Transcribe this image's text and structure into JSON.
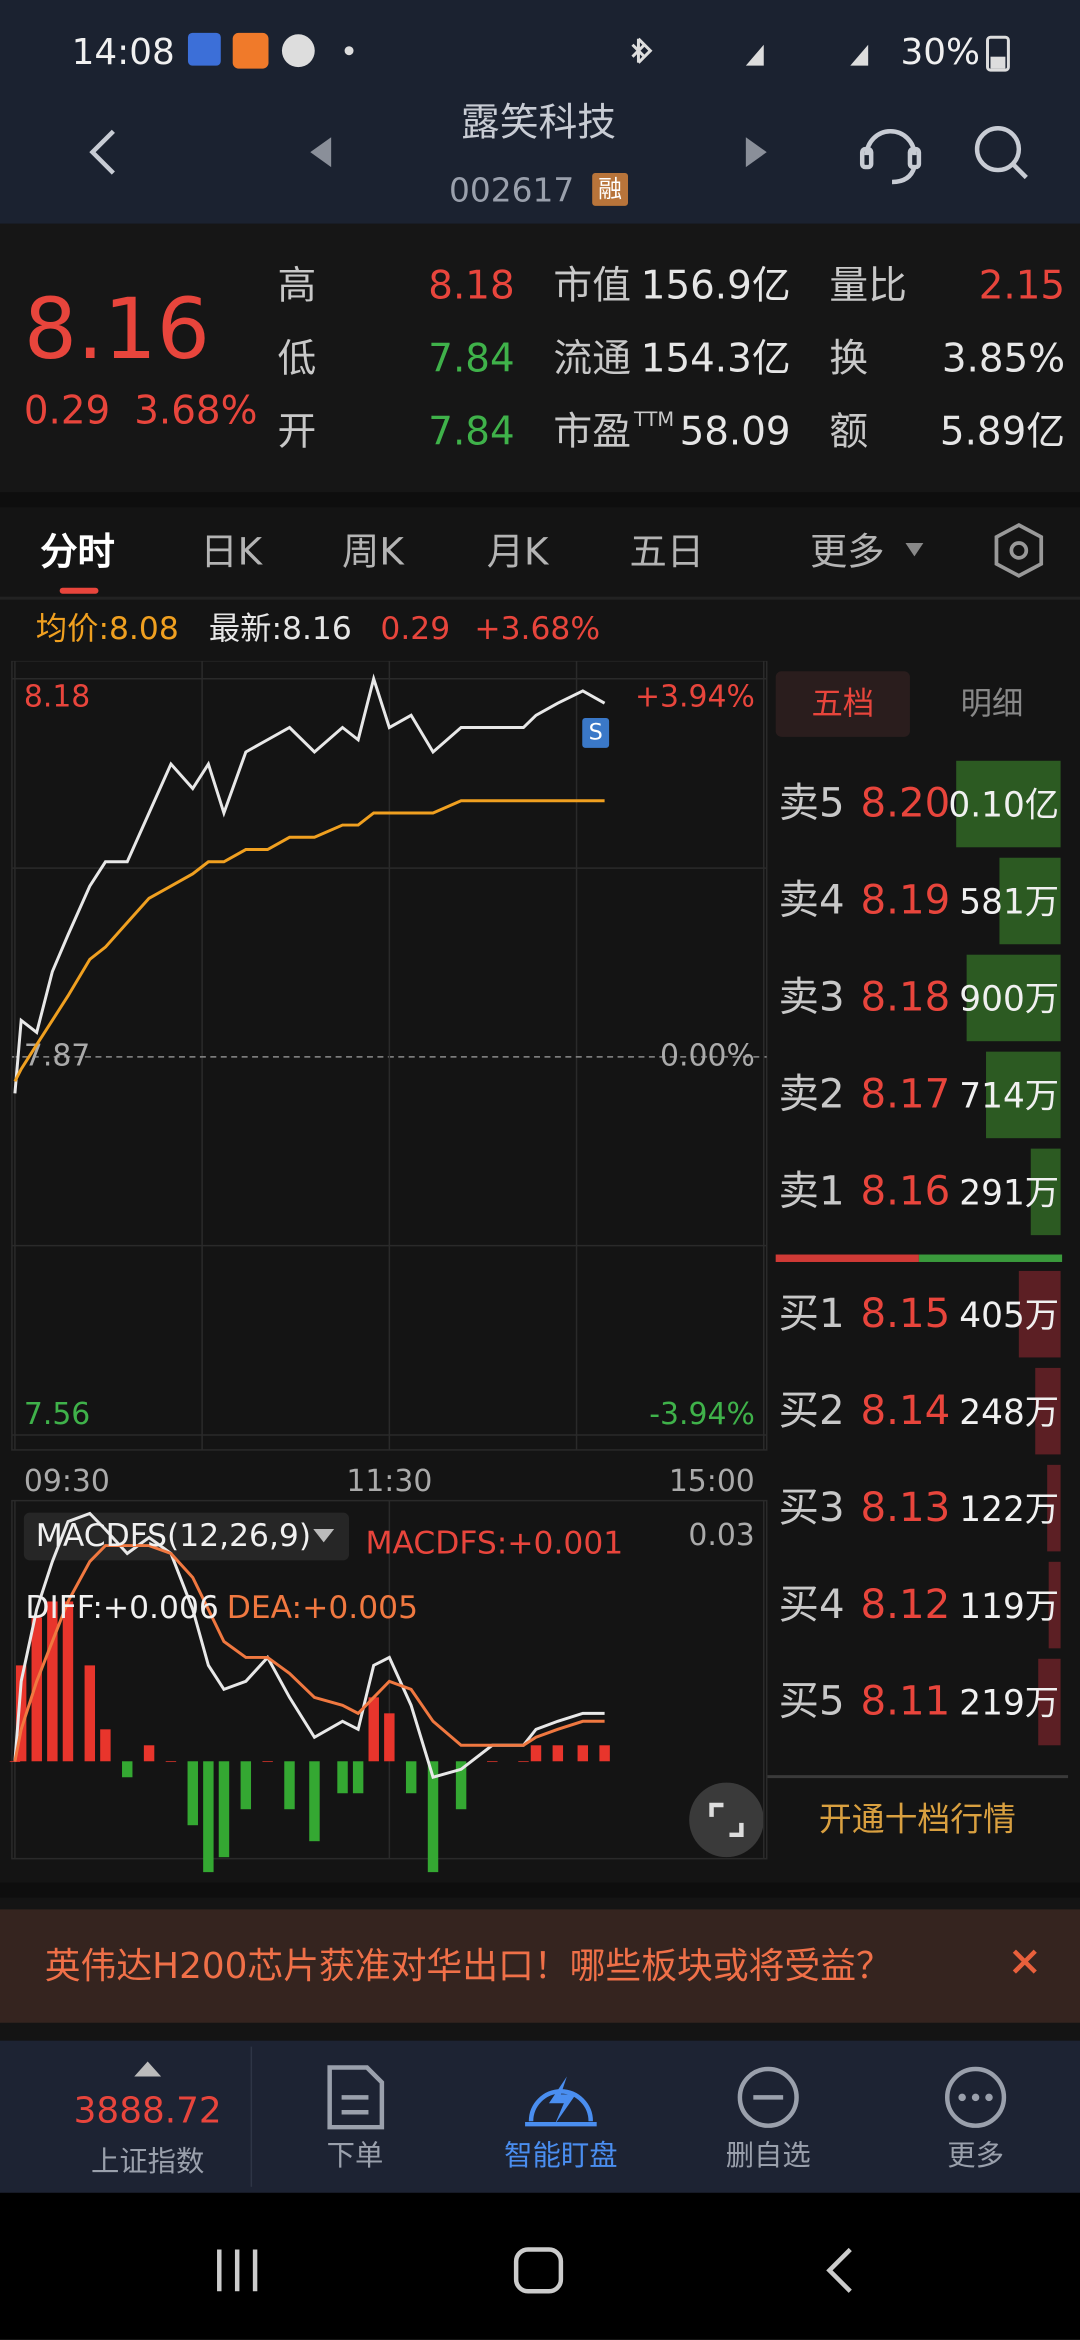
{
  "status_bar": {
    "time": "14:08",
    "battery": "30%"
  },
  "header": {
    "title": "露笑科技",
    "code": "002617",
    "badge": "融"
  },
  "quote": {
    "price": "8.16",
    "change": "0.29",
    "change_pct": "3.68%",
    "stats": [
      [
        {
          "label": "高",
          "value": "8.18",
          "tone": "up"
        },
        {
          "label": "低",
          "value": "7.84",
          "tone": "down"
        },
        {
          "label": "开",
          "value": "7.84",
          "tone": "down"
        }
      ],
      [
        {
          "label": "市值",
          "value": "156.9亿"
        },
        {
          "label": "流通",
          "value": "154.3亿"
        },
        {
          "label": "市盈",
          "sup": "TTM",
          "value": "58.09"
        }
      ],
      [
        {
          "label": "量比",
          "value": "2.15",
          "tone": "up"
        },
        {
          "label": "换",
          "value": "3.85%"
        },
        {
          "label": "额",
          "value": "5.89亿"
        }
      ]
    ]
  },
  "tabs": {
    "items": [
      "分时",
      "日K",
      "周K",
      "月K",
      "五日",
      "更多"
    ],
    "active": 0
  },
  "summary": {
    "avg": "均价:8.08",
    "latest": "最新:8.16",
    "change": "0.29",
    "change_pct": "+3.68%"
  },
  "chart_data": [
    {
      "type": "line",
      "x": [
        0,
        2,
        7,
        12,
        17,
        24,
        29,
        36,
        43,
        50,
        57,
        62,
        67,
        74,
        81,
        88,
        96,
        105,
        110,
        115,
        120,
        127,
        134,
        143,
        153,
        163,
        167,
        174,
        182,
        189
      ],
      "series": [
        {
          "color": "#e8e8e8",
          "values": [
            7.84,
            7.9,
            7.89,
            7.94,
            7.97,
            8.01,
            8.03,
            8.03,
            8.07,
            8.11,
            8.09,
            8.11,
            8.07,
            8.12,
            8.13,
            8.14,
            8.12,
            8.14,
            8.13,
            8.18,
            8.14,
            8.15,
            8.12,
            8.14,
            8.14,
            8.14,
            8.15,
            8.16,
            8.17,
            8.16
          ]
        },
        {
          "color": "#f0a020",
          "values": [
            7.85,
            7.86,
            7.88,
            7.9,
            7.92,
            7.95,
            7.96,
            7.98,
            8.0,
            8.01,
            8.02,
            8.03,
            8.03,
            8.04,
            8.04,
            8.05,
            8.05,
            8.06,
            8.06,
            8.07,
            8.07,
            8.07,
            8.07,
            8.08,
            8.08,
            8.08,
            8.08,
            8.08,
            8.08,
            8.08
          ]
        }
      ],
      "xlim": [
        0,
        240
      ],
      "xticks": [
        {
          "value": 0,
          "label": "09:30"
        },
        {
          "value": 120,
          "label": "11:30"
        },
        {
          "value": 240,
          "label": "15:00"
        }
      ],
      "ylim": [
        7.56,
        8.18
      ],
      "yticks": [
        8.18,
        7.87,
        7.56
      ],
      "y2lim": [
        -3.94,
        3.94
      ],
      "y2ticks": [
        {
          "value": 3.94,
          "label": "+3.94%"
        },
        {
          "value": 0,
          "label": "0.00%"
        },
        {
          "value": -3.94,
          "label": "-3.94%"
        }
      ],
      "annotations": [
        "S"
      ]
    },
    {
      "type": "macd",
      "title": "MACDFS(12,26,9)",
      "labels": [
        "MACDFS:+0.001",
        "DIFF:+0.006",
        "DEA:+0.005"
      ],
      "x": [
        0,
        2,
        7,
        12,
        17,
        24,
        29,
        36,
        43,
        50,
        57,
        62,
        67,
        74,
        81,
        88,
        96,
        105,
        110,
        115,
        120,
        127,
        134,
        143,
        153,
        163,
        167,
        174,
        182,
        189
      ],
      "series": [
        {
          "color": "#e8e8e8",
          "values": [
            0.0,
            0.01,
            0.019,
            0.025,
            0.03,
            0.031,
            0.029,
            0.026,
            0.028,
            0.026,
            0.019,
            0.012,
            0.009,
            0.01,
            0.013,
            0.008,
            0.003,
            0.005,
            0.004,
            0.012,
            0.013,
            0.007,
            -0.002,
            -0.001,
            0.002,
            0.002,
            0.004,
            0.005,
            0.006,
            0.006
          ]
        },
        {
          "color": "#f07840",
          "values": [
            0.0,
            0.004,
            0.01,
            0.015,
            0.02,
            0.025,
            0.027,
            0.027,
            0.027,
            0.026,
            0.023,
            0.019,
            0.015,
            0.013,
            0.013,
            0.011,
            0.008,
            0.007,
            0.006,
            0.008,
            0.01,
            0.009,
            0.005,
            0.002,
            0.002,
            0.002,
            0.003,
            0.004,
            0.005,
            0.005
          ]
        },
        {
          "type": "bar",
          "up_color": "#e8352c",
          "down_color": "#34a832",
          "values": [
            0.0,
            0.012,
            0.018,
            0.02,
            0.02,
            0.012,
            0.004,
            -0.002,
            0.002,
            0.0,
            -0.008,
            -0.014,
            -0.012,
            -0.006,
            0.0,
            -0.006,
            -0.01,
            -0.004,
            -0.004,
            0.008,
            0.006,
            -0.004,
            -0.014,
            -0.006,
            0.0,
            0.0,
            0.002,
            0.002,
            0.002,
            0.002
          ]
        }
      ],
      "xlim": [
        0,
        240
      ],
      "ylim": [
        -0.012,
        0.03
      ],
      "yticks": [
        0.03
      ]
    }
  ],
  "order_book": {
    "tabs": [
      "五档",
      "明细"
    ],
    "asks": {
      "labels": [
        "卖5",
        "卖4",
        "卖3",
        "卖2",
        "卖1"
      ],
      "prices": [
        "8.20",
        "8.19",
        "8.18",
        "8.17",
        "8.16"
      ],
      "volumes": [
        1000,
        581,
        900,
        714,
        291
      ],
      "volume_labels": [
        "0.10亿",
        "581万",
        "900万",
        "714万",
        "291万"
      ],
      "color": "#2c5a22"
    },
    "bids": {
      "labels": [
        "买1",
        "买2",
        "买3",
        "买4",
        "买5"
      ],
      "prices": [
        "8.15",
        "8.14",
        "8.13",
        "8.12",
        "8.11"
      ],
      "volumes": [
        405,
        248,
        122,
        119,
        219
      ],
      "volume_labels": [
        "405万",
        "248万",
        "122万",
        "119万",
        "219万"
      ],
      "color": "#5c1f24"
    },
    "button": "开通十档行情"
  },
  "banner": {
    "text": "英伟达H200芯片获准对华出口！哪些板块或将受益？"
  },
  "bottom_nav": {
    "index": {
      "value": "3888.72",
      "name": "上证指数"
    },
    "items": [
      "下单",
      "智能盯盘",
      "删自选",
      "更多"
    ],
    "active": 1
  }
}
